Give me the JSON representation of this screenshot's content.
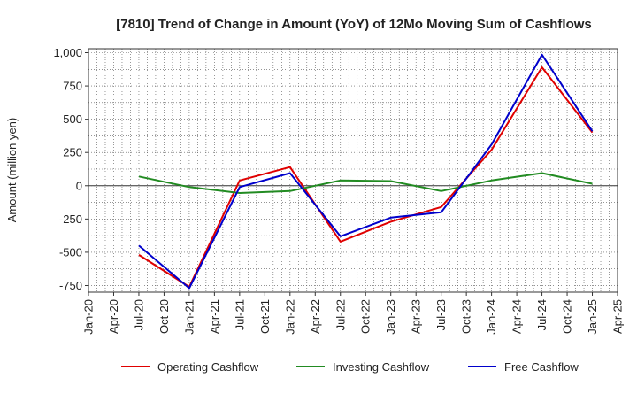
{
  "chart_data": {
    "type": "line",
    "title": "[7810]  Trend of Change in Amount (YoY) of 12Mo Moving Sum of Cashflows",
    "xlabel": "",
    "ylabel": "Amount (million yen)",
    "ylim": [
      -800,
      1030
    ],
    "yticks": [
      -750,
      -500,
      -250,
      0,
      250,
      500,
      750,
      1000
    ],
    "ytick_labels": [
      "-750",
      "-500",
      "-250",
      "0",
      "250",
      "500",
      "750",
      "1,000"
    ],
    "categories": [
      "Jan-20",
      "Apr-20",
      "Jul-20",
      "Oct-20",
      "Jan-21",
      "Apr-21",
      "Jul-21",
      "Oct-21",
      "Jan-22",
      "Apr-22",
      "Jul-22",
      "Oct-22",
      "Jan-23",
      "Apr-23",
      "Jul-23",
      "Oct-23",
      "Jan-24",
      "Apr-24",
      "Jul-24",
      "Oct-24",
      "Jan-25",
      "Apr-25"
    ],
    "grid": true,
    "legend_position": "bottom",
    "series": [
      {
        "name": "Operating Cashflow",
        "color": "#e00000",
        "values": [
          null,
          null,
          -520,
          null,
          -760,
          null,
          40,
          null,
          140,
          null,
          -420,
          null,
          -270,
          null,
          -160,
          null,
          270,
          null,
          890,
          null,
          400,
          null
        ]
      },
      {
        "name": "Investing Cashflow",
        "color": "#228b22",
        "values": [
          null,
          null,
          70,
          null,
          -10,
          null,
          -55,
          null,
          -40,
          null,
          40,
          null,
          35,
          null,
          -40,
          null,
          40,
          null,
          95,
          null,
          15,
          null
        ]
      },
      {
        "name": "Free Cashflow",
        "color": "#0000cc",
        "values": [
          null,
          null,
          -450,
          null,
          -770,
          null,
          -10,
          null,
          95,
          null,
          -380,
          null,
          -240,
          null,
          -200,
          null,
          310,
          null,
          985,
          null,
          410,
          null
        ]
      }
    ]
  }
}
